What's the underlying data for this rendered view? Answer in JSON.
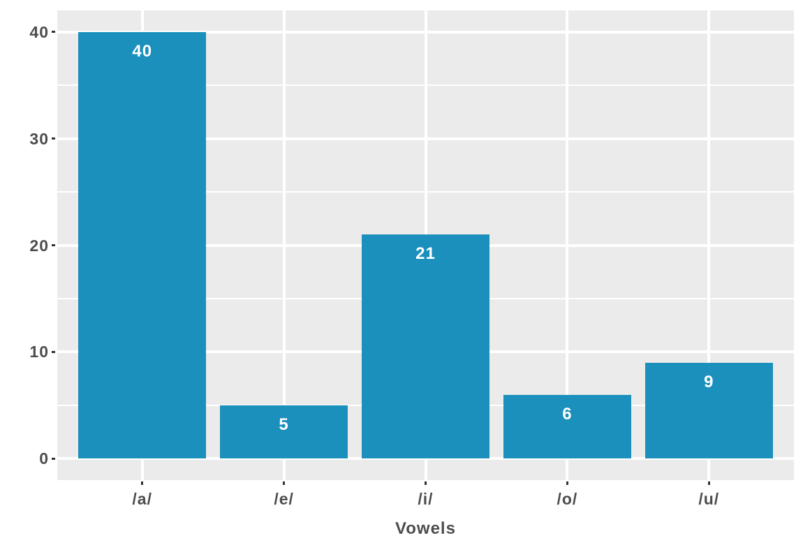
{
  "chart_data": {
    "type": "bar",
    "categories": [
      "/a/",
      "/e/",
      "/i/",
      "/o/",
      "/u/"
    ],
    "values": [
      40,
      5,
      21,
      6,
      9
    ],
    "title": "",
    "xlabel": "Vowels",
    "ylabel": "",
    "ylim": [
      0,
      40
    ],
    "yticks": [
      0,
      10,
      20,
      30,
      40
    ],
    "yticks_minor": [
      5,
      15,
      25,
      35
    ],
    "bar_labels": [
      "40",
      "5",
      "21",
      "6",
      "9"
    ],
    "legend": false,
    "grid": true,
    "colors": {
      "bar_fill": "#1b90bc",
      "panel_background": "#ebebeb",
      "gridline": "#ffffff",
      "axis_text": "#4d4d4d",
      "axis_title": "#4d4d4d",
      "tick_mark": "#333333",
      "bar_label_text": "#ffffff",
      "figure_background": "#ffffff"
    }
  }
}
